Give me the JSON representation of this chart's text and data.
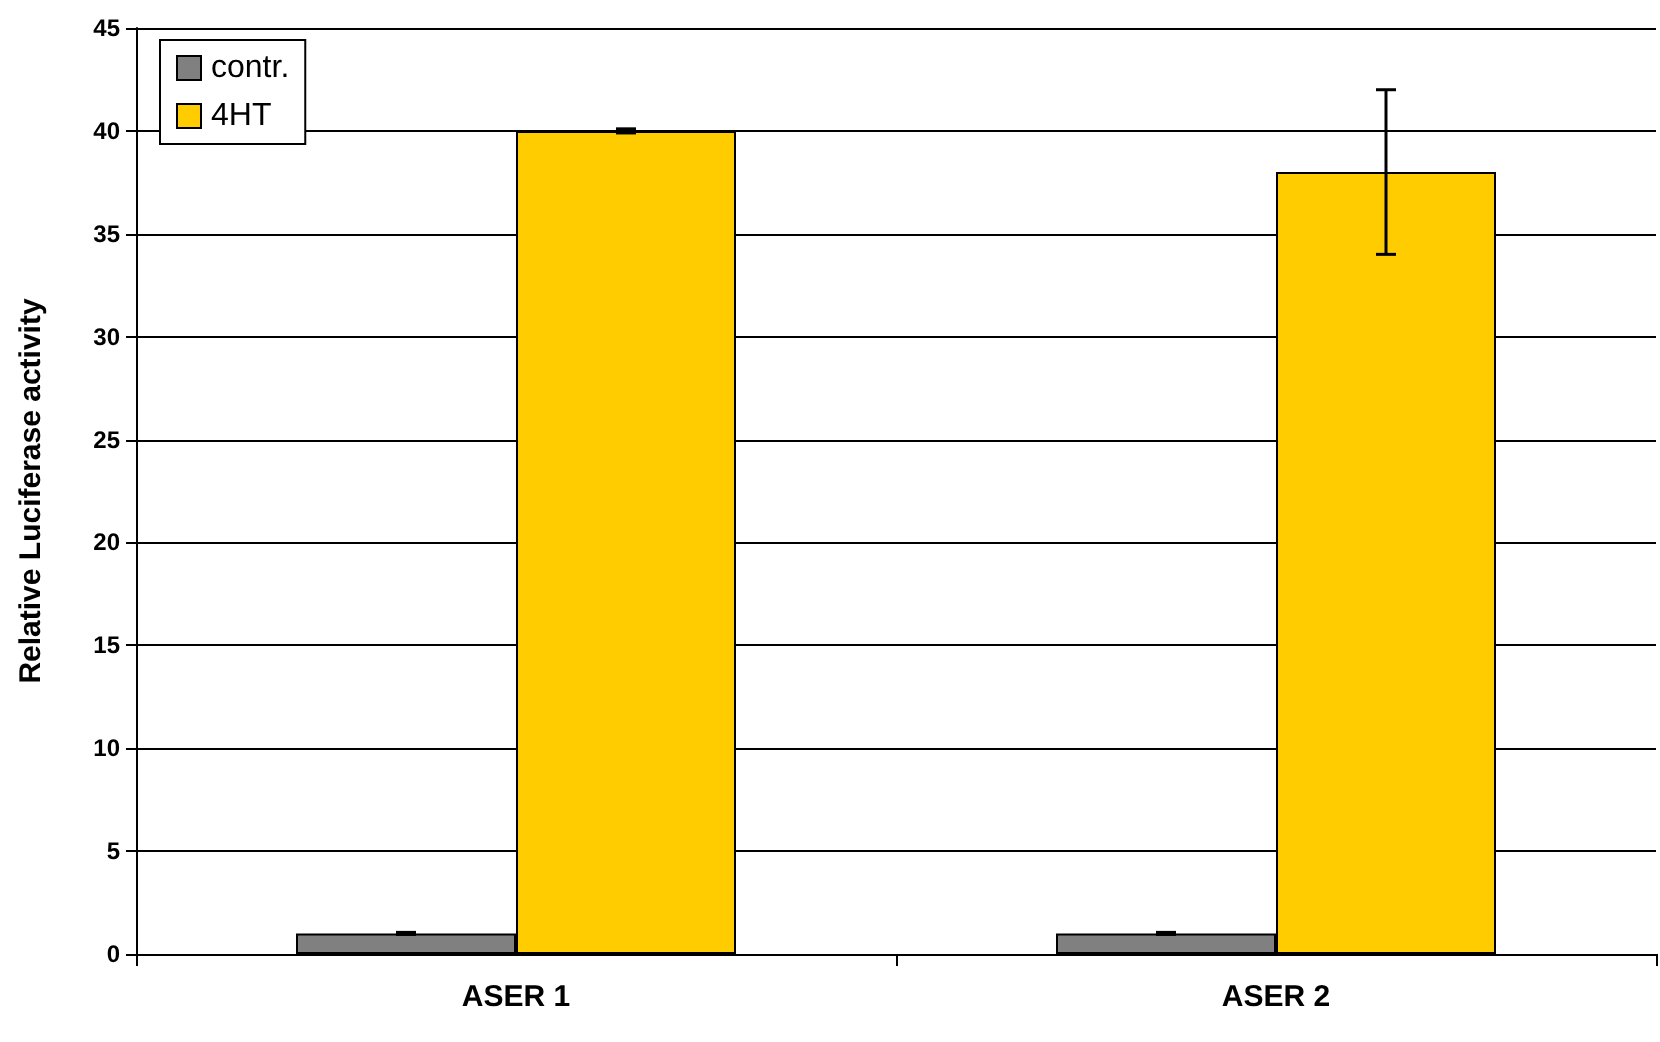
{
  "chart_data": {
    "type": "bar",
    "ylabel": "Relative Luciferase activity",
    "categories": [
      "ASER 1",
      "ASER 2"
    ],
    "series": [
      {
        "name": "contr.",
        "color": "#808080",
        "values": [
          1,
          1
        ],
        "errors": [
          0.05,
          0.05
        ]
      },
      {
        "name": "4HT",
        "color": "#ffcc00",
        "values": [
          40,
          38
        ],
        "errors": [
          0.1,
          4
        ]
      }
    ],
    "ylim": [
      0,
      45
    ],
    "yticks": [
      0,
      5,
      10,
      15,
      20,
      25,
      30,
      35,
      40,
      45
    ],
    "grid": "y",
    "legend": "top left"
  }
}
